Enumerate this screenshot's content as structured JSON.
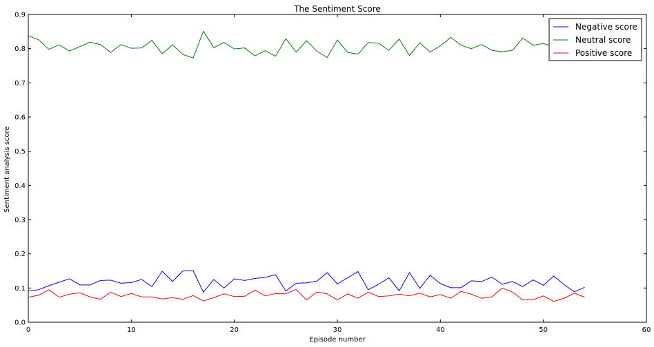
{
  "chart_data": {
    "type": "line",
    "title": "The Sentiment Score",
    "xlabel": "Episode number",
    "ylabel": "Sentiment analysis score",
    "xlim": [
      0,
      60
    ],
    "ylim": [
      0,
      0.9
    ],
    "xticks": [
      0,
      10,
      20,
      30,
      40,
      50,
      60
    ],
    "yticks": [
      0.0,
      0.1,
      0.2,
      0.3,
      0.4,
      0.5,
      0.6,
      0.7,
      0.8,
      0.9
    ],
    "ytick_labels": [
      "0.0",
      "0.1",
      "0.2",
      "0.3",
      "0.4",
      "0.5",
      "0.6",
      "0.7",
      "0.8",
      "0.9"
    ],
    "grid": false,
    "legend_position": "top-right",
    "x": [
      0,
      1,
      2,
      3,
      4,
      5,
      6,
      7,
      8,
      9,
      10,
      11,
      12,
      13,
      14,
      15,
      16,
      17,
      18,
      19,
      20,
      21,
      22,
      23,
      24,
      25,
      26,
      27,
      28,
      29,
      30,
      31,
      32,
      33,
      34,
      35,
      36,
      37,
      38,
      39,
      40,
      41,
      42,
      43,
      44,
      45,
      46,
      47,
      48,
      49,
      50,
      51,
      52,
      53,
      54
    ],
    "series": [
      {
        "name": "Negative score",
        "color": "#0000ff",
        "values": [
          0.091,
          0.095,
          0.107,
          0.117,
          0.127,
          0.109,
          0.109,
          0.122,
          0.123,
          0.114,
          0.116,
          0.125,
          0.104,
          0.149,
          0.119,
          0.15,
          0.151,
          0.088,
          0.125,
          0.1,
          0.127,
          0.122,
          0.128,
          0.131,
          0.139,
          0.091,
          0.114,
          0.115,
          0.12,
          0.145,
          0.112,
          0.13,
          0.148,
          0.095,
          0.111,
          0.13,
          0.092,
          0.145,
          0.099,
          0.137,
          0.113,
          0.101,
          0.101,
          0.121,
          0.119,
          0.132,
          0.111,
          0.119,
          0.104,
          0.124,
          0.108,
          0.135,
          0.11,
          0.089,
          0.102
        ]
      },
      {
        "name": "Neutral score",
        "color": "#008000",
        "values": [
          0.838,
          0.826,
          0.798,
          0.811,
          0.793,
          0.806,
          0.819,
          0.812,
          0.789,
          0.812,
          0.801,
          0.802,
          0.824,
          0.785,
          0.811,
          0.783,
          0.773,
          0.851,
          0.803,
          0.818,
          0.799,
          0.802,
          0.779,
          0.794,
          0.778,
          0.829,
          0.79,
          0.823,
          0.793,
          0.774,
          0.825,
          0.789,
          0.784,
          0.818,
          0.816,
          0.795,
          0.828,
          0.78,
          0.817,
          0.79,
          0.808,
          0.833,
          0.81,
          0.8,
          0.812,
          0.795,
          0.791,
          0.795,
          0.831,
          0.81,
          0.815,
          0.806,
          0.8,
          0.827,
          0.825
        ]
      },
      {
        "name": "Positive score",
        "color": "#ff0000",
        "values": [
          0.073,
          0.079,
          0.095,
          0.073,
          0.082,
          0.086,
          0.074,
          0.067,
          0.088,
          0.075,
          0.084,
          0.074,
          0.074,
          0.068,
          0.072,
          0.067,
          0.078,
          0.062,
          0.072,
          0.083,
          0.075,
          0.076,
          0.094,
          0.077,
          0.084,
          0.083,
          0.096,
          0.065,
          0.088,
          0.083,
          0.065,
          0.083,
          0.07,
          0.088,
          0.075,
          0.077,
          0.082,
          0.077,
          0.085,
          0.074,
          0.081,
          0.07,
          0.09,
          0.082,
          0.07,
          0.074,
          0.1,
          0.088,
          0.065,
          0.066,
          0.077,
          0.061,
          0.07,
          0.085,
          0.073
        ]
      }
    ]
  }
}
